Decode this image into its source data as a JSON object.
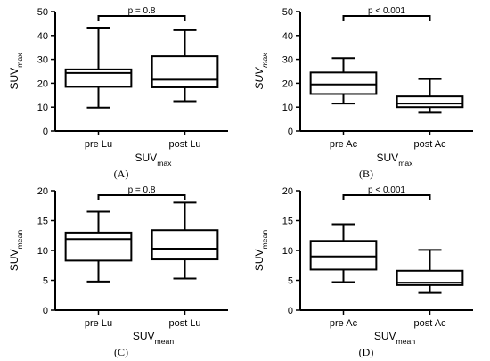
{
  "chart_data": [
    {
      "type": "box",
      "panel_label": "(A)",
      "ylabel_main": "SUV",
      "ylabel_sub": "max",
      "ylabel_style": "normal",
      "xlabel_main": "SUV",
      "xlabel_sub": "max",
      "ylim": [
        0,
        50
      ],
      "yticks": [
        0,
        10,
        20,
        30,
        40,
        50
      ],
      "categories": [
        "pre Lu",
        "post Lu"
      ],
      "boxes": [
        {
          "min": 9.8,
          "q1": 18.5,
          "median": 24.3,
          "q3": 25.8,
          "max": 43.3
        },
        {
          "min": 12.5,
          "q1": 18.3,
          "median": 21.5,
          "q3": 31.3,
          "max": 42.2
        }
      ],
      "annotation": "p = 0.8",
      "grid": false
    },
    {
      "type": "box",
      "panel_label": "(B)",
      "ylabel_main": "SUV",
      "ylabel_sub": "max",
      "ylabel_style": "italic",
      "xlabel_main": "SUV",
      "xlabel_sub": "max",
      "ylim": [
        0,
        50
      ],
      "yticks": [
        0,
        10,
        20,
        30,
        40,
        50
      ],
      "categories": [
        "pre Ac",
        "post Ac"
      ],
      "boxes": [
        {
          "min": 11.5,
          "q1": 15.5,
          "median": 19.5,
          "q3": 24.5,
          "max": 30.5
        },
        {
          "min": 7.7,
          "q1": 10.0,
          "median": 11.5,
          "q3": 14.5,
          "max": 21.8
        }
      ],
      "annotation": "p < 0.001",
      "grid": false
    },
    {
      "type": "box",
      "panel_label": "(C)",
      "ylabel_main": "SUV",
      "ylabel_sub": "mean",
      "ylabel_style": "normal",
      "xlabel_main": "SUV",
      "xlabel_sub": "mean",
      "ylim": [
        0,
        20
      ],
      "yticks": [
        0,
        5,
        10,
        15,
        20
      ],
      "categories": [
        "pre Lu",
        "post Lu"
      ],
      "boxes": [
        {
          "min": 4.8,
          "q1": 8.3,
          "median": 11.9,
          "q3": 13.0,
          "max": 16.5
        },
        {
          "min": 5.3,
          "q1": 8.5,
          "median": 10.3,
          "q3": 13.4,
          "max": 18.0
        }
      ],
      "annotation": "p = 0.8",
      "grid": false
    },
    {
      "type": "box",
      "panel_label": "(D)",
      "ylabel_main": "SUV",
      "ylabel_sub": "mean",
      "ylabel_style": "normal",
      "xlabel_main": "SUV",
      "xlabel_sub": "mean",
      "ylim": [
        0,
        20
      ],
      "yticks": [
        0,
        5,
        10,
        15,
        20
      ],
      "categories": [
        "pre Ac",
        "post Ac"
      ],
      "boxes": [
        {
          "min": 4.7,
          "q1": 6.8,
          "median": 9.0,
          "q3": 11.6,
          "max": 14.4
        },
        {
          "min": 2.9,
          "q1": 4.2,
          "median": 4.6,
          "q3": 6.6,
          "max": 10.1
        }
      ],
      "annotation": "p < 0.001",
      "grid": false
    }
  ]
}
